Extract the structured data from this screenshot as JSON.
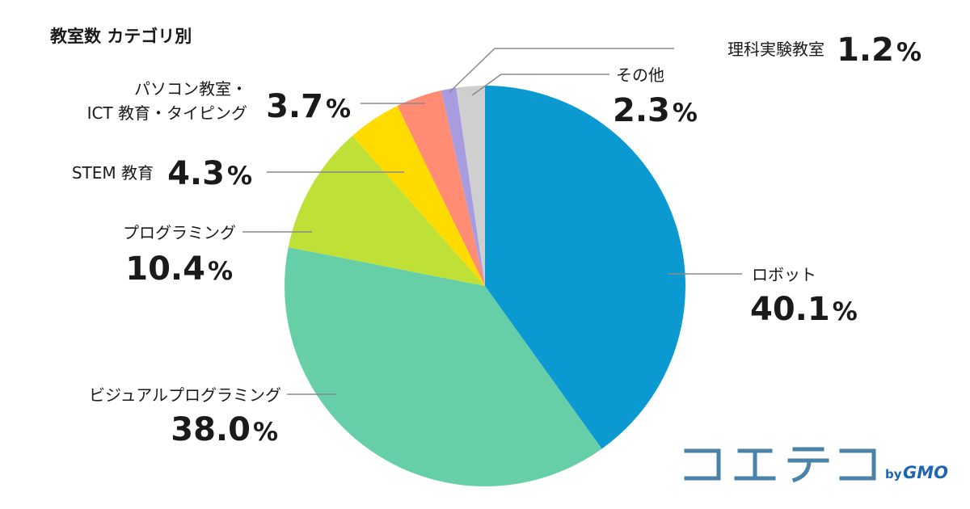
{
  "chart_data": {
    "type": "pie",
    "title": "教室数 カテゴリ別",
    "start_angle_deg": 0,
    "direction": "clockwise",
    "slices": [
      {
        "label": "ロボット",
        "value": 40.1,
        "value_label": "40.1",
        "unit": "%",
        "color": "#0a9ad1"
      },
      {
        "label": "ビジュアルプログラミング",
        "value": 38.0,
        "value_label": "38.0",
        "unit": "%",
        "color": "#67cfa8"
      },
      {
        "label": "プログラミング",
        "value": 10.4,
        "value_label": "10.4",
        "unit": "%",
        "color": "#bfe036"
      },
      {
        "label": "STEM 教育",
        "value": 4.3,
        "value_label": "4.3",
        "unit": "%",
        "color": "#ffdb00"
      },
      {
        "label_lines": [
          "パソコン教室・",
          "ICT 教育・タイピング"
        ],
        "value": 3.7,
        "value_label": "3.7",
        "unit": "%",
        "color": "#ff8c73"
      },
      {
        "label": "理科実験教室",
        "value": 1.2,
        "value_label": "1.2",
        "unit": "%",
        "color": "#a99be0"
      },
      {
        "label": "その他",
        "value": 2.3,
        "value_label": "2.3",
        "unit": "%",
        "color": "#cfcfcf"
      }
    ]
  },
  "logo": {
    "by": "by",
    "brand": "GMO",
    "jp_name": "コエテコ",
    "jp_color": "#4a82a8",
    "brand_color": "#1e66b4"
  }
}
